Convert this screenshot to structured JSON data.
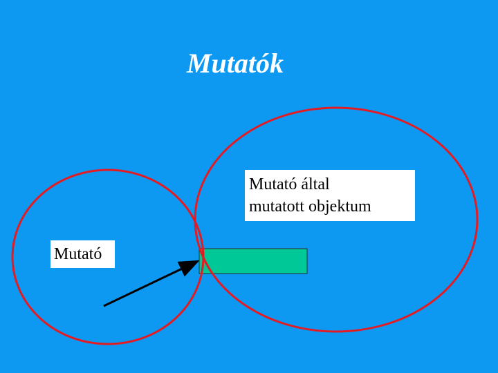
{
  "slide": {
    "title": "Mutatók",
    "background_color": "#0d99f2"
  },
  "diagram": {
    "pointer_label": "Mutató",
    "object_label_line1": "Mutató által",
    "object_label_line2": "mutatott objektum",
    "circle_color": "#e31b23",
    "object_color": "#00c896",
    "arrow_color": "#000000"
  }
}
